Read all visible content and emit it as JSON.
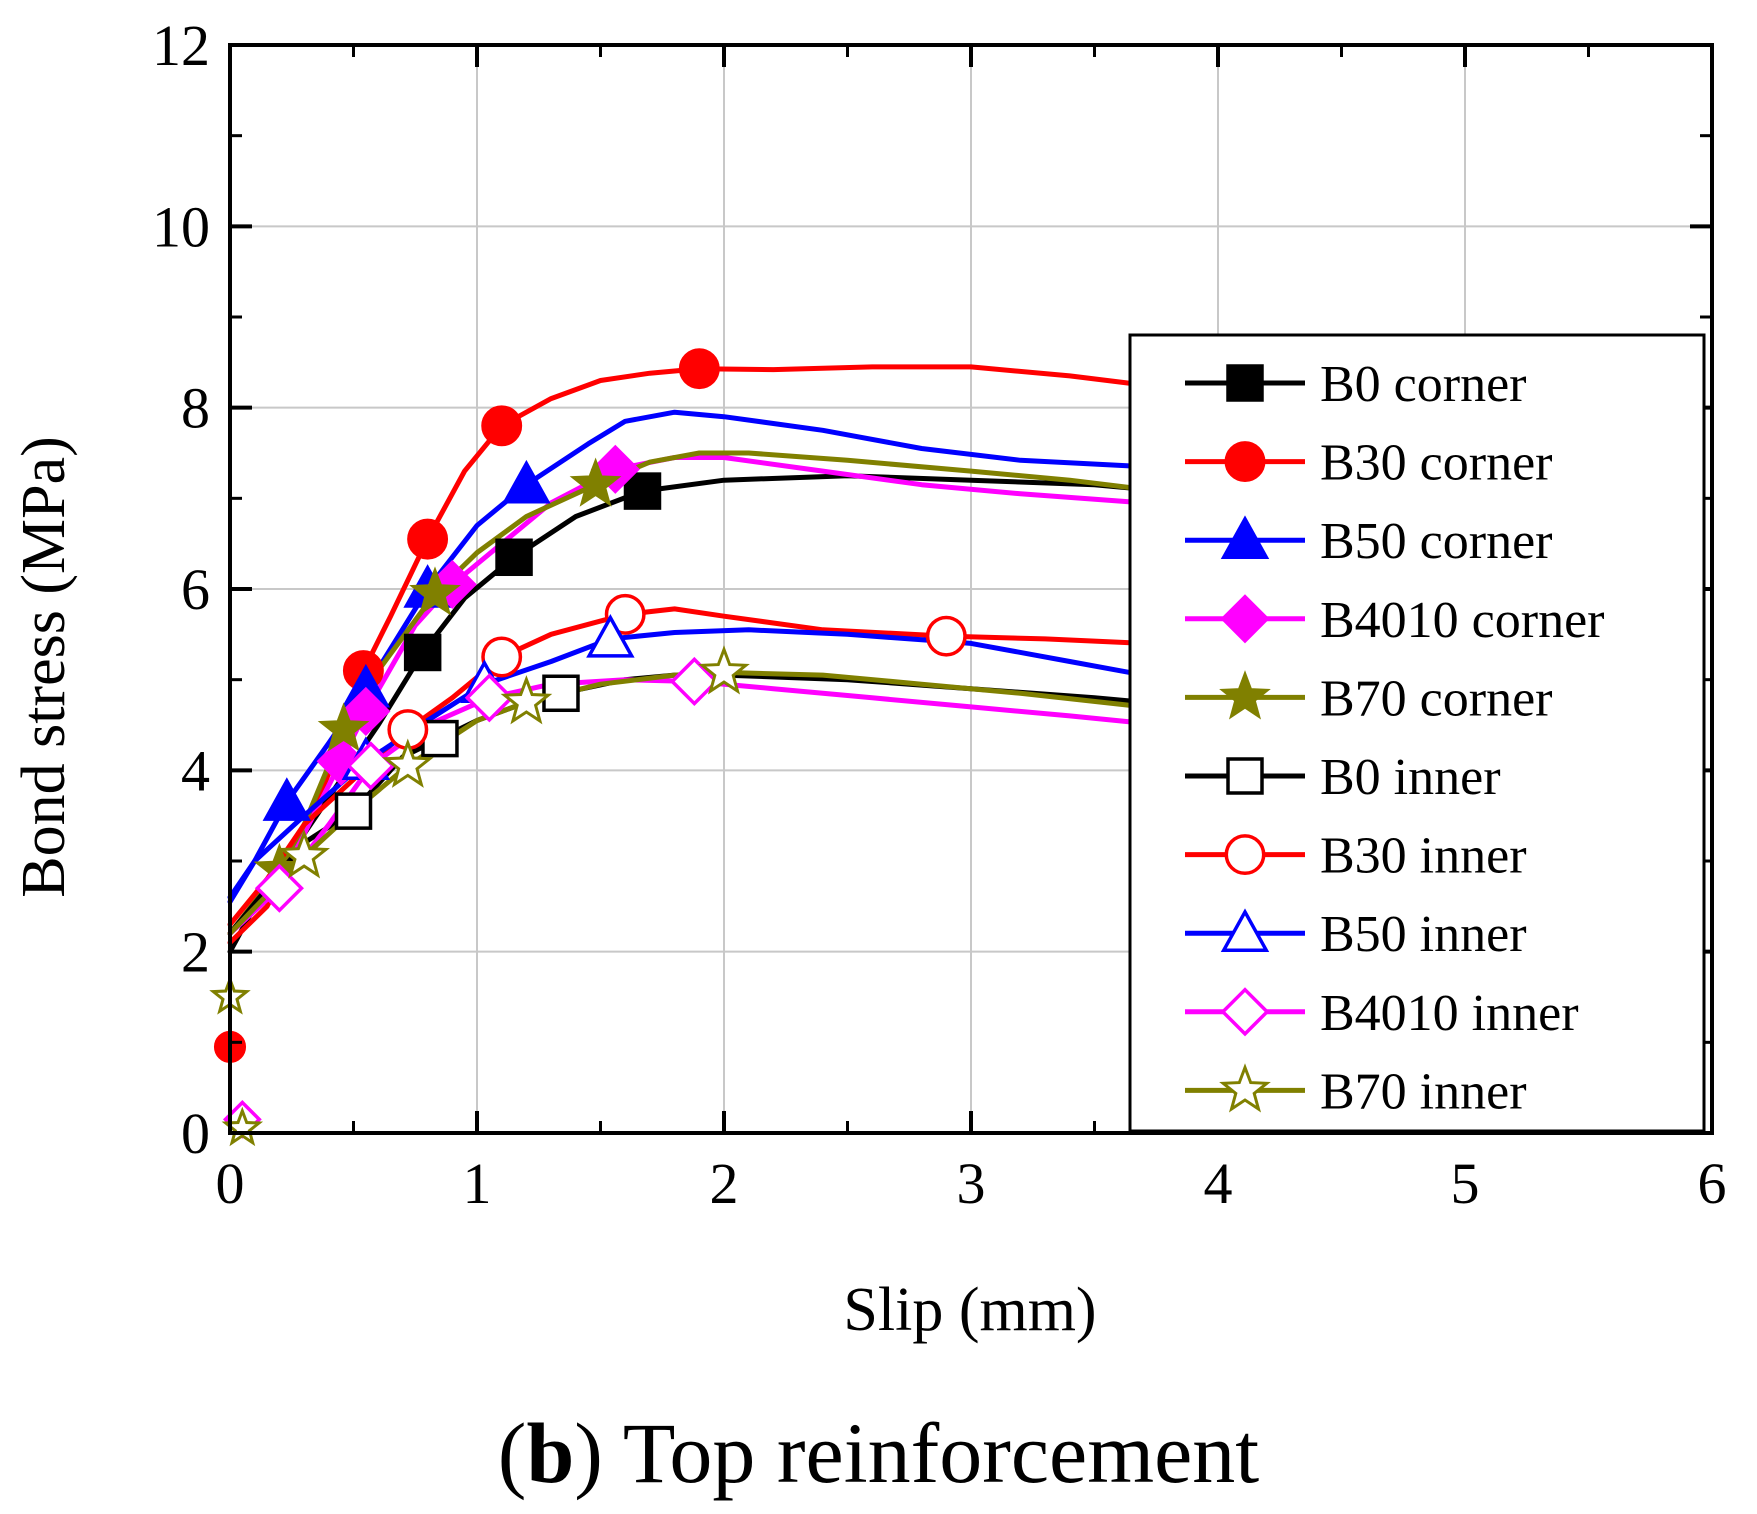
{
  "caption": {
    "open_paren": "(",
    "letter": "b",
    "rest": ") Top reinforcement"
  },
  "chart_data": {
    "type": "line",
    "title": "",
    "xlabel": "Slip (mm)",
    "ylabel": "Bond stress (MPa)",
    "xlim": [
      0,
      6
    ],
    "ylim": [
      0,
      12
    ],
    "xticks": [
      0,
      1,
      2,
      3,
      4,
      5,
      6
    ],
    "yticks": [
      0,
      2,
      4,
      6,
      8,
      10,
      12
    ],
    "xtick_labels": [
      "0",
      "1",
      "2",
      "3",
      "4",
      "5",
      "6"
    ],
    "ytick_labels": [
      "0",
      "2",
      "4",
      "6",
      "8",
      "10",
      "12"
    ],
    "grid": true,
    "legend_position": "right",
    "series": [
      {
        "name": "B0 corner",
        "color": "#000000",
        "marker": "square",
        "filled": true,
        "x": [
          0,
          0.1,
          0.2,
          0.3,
          0.45,
          0.6,
          0.78,
          0.95,
          1.15,
          1.4,
          1.67,
          2.0,
          2.5,
          3.0,
          3.5,
          3.7
        ],
        "y": [
          2.0,
          2.5,
          2.9,
          3.3,
          3.9,
          4.5,
          5.3,
          5.9,
          6.35,
          6.8,
          7.08,
          7.2,
          7.25,
          7.2,
          7.15,
          7.1
        ],
        "markers_x": [
          0.78,
          1.15,
          1.67
        ]
      },
      {
        "name": "B30 corner",
        "color": "#ff0000",
        "marker": "circle",
        "filled": true,
        "x": [
          0,
          0.15,
          0.3,
          0.45,
          0.54,
          0.65,
          0.8,
          0.95,
          1.1,
          1.3,
          1.5,
          1.7,
          1.9,
          2.2,
          2.6,
          3.0,
          3.4,
          3.7
        ],
        "y": [
          2.1,
          2.5,
          3.3,
          4.3,
          5.1,
          5.7,
          6.55,
          7.3,
          7.8,
          8.1,
          8.3,
          8.38,
          8.43,
          8.42,
          8.45,
          8.45,
          8.35,
          8.25
        ],
        "markers_x": [
          0.54,
          0.8,
          1.1,
          1.9
        ]
      },
      {
        "name": "B50 corner",
        "color": "#0000ff",
        "marker": "triangle",
        "filled": true,
        "x": [
          0,
          0.1,
          0.23,
          0.4,
          0.55,
          0.8,
          1.0,
          1.2,
          1.45,
          1.6,
          1.8,
          2.0,
          2.4,
          2.8,
          3.2,
          3.7
        ],
        "y": [
          2.6,
          3.0,
          3.65,
          4.3,
          4.9,
          6.0,
          6.7,
          7.15,
          7.6,
          7.85,
          7.95,
          7.9,
          7.75,
          7.55,
          7.42,
          7.35
        ],
        "markers_x": [
          0.23,
          0.55,
          0.8,
          1.2
        ]
      },
      {
        "name": "B4010 corner",
        "color": "#ff00ff",
        "marker": "diamond",
        "filled": true,
        "x": [
          0,
          0.15,
          0.3,
          0.45,
          0.55,
          0.75,
          0.9,
          1.1,
          1.3,
          1.56,
          1.8,
          2.0,
          2.4,
          2.8,
          3.2,
          3.7
        ],
        "y": [
          2.2,
          2.7,
          3.3,
          4.1,
          4.65,
          5.6,
          6.05,
          6.5,
          6.95,
          7.32,
          7.45,
          7.45,
          7.3,
          7.15,
          7.05,
          6.95
        ],
        "markers_x": [
          0.45,
          0.55,
          0.9,
          1.56
        ]
      },
      {
        "name": "B70 corner",
        "color": "#808000",
        "marker": "star",
        "filled": true,
        "x": [
          0,
          0.2,
          0.3,
          0.46,
          0.6,
          0.83,
          1.0,
          1.2,
          1.48,
          1.7,
          1.9,
          2.1,
          2.5,
          3.0,
          3.4,
          3.7
        ],
        "y": [
          2.2,
          2.9,
          3.4,
          4.45,
          5.1,
          5.95,
          6.4,
          6.8,
          7.15,
          7.4,
          7.5,
          7.5,
          7.42,
          7.3,
          7.2,
          7.1
        ],
        "markers_x": [
          0.2,
          0.46,
          0.83,
          1.48
        ]
      },
      {
        "name": "B0 inner",
        "color": "#000000",
        "marker": "square",
        "filled": false,
        "x": [
          0,
          0.15,
          0.3,
          0.5,
          0.7,
          0.85,
          1.0,
          1.15,
          1.34,
          1.6,
          1.8,
          2.0,
          2.5,
          3.0,
          3.5,
          3.7
        ],
        "y": [
          2.2,
          2.7,
          3.2,
          3.55,
          4.15,
          4.35,
          4.55,
          4.7,
          4.85,
          5.0,
          5.05,
          5.05,
          5.0,
          4.9,
          4.8,
          4.75
        ],
        "markers_x": [
          0.5,
          0.85,
          1.34
        ]
      },
      {
        "name": "B30 inner",
        "color": "#ff0000",
        "marker": "circle",
        "filled": false,
        "x": [
          0,
          0.15,
          0.3,
          0.5,
          0.72,
          0.9,
          1.1,
          1.3,
          1.6,
          1.8,
          2.0,
          2.4,
          2.9,
          3.3,
          3.7
        ],
        "y": [
          2.3,
          2.8,
          3.4,
          3.9,
          4.45,
          4.8,
          5.25,
          5.5,
          5.72,
          5.78,
          5.7,
          5.55,
          5.48,
          5.45,
          5.4
        ],
        "markers_x": [
          0.72,
          1.1,
          1.6,
          2.9
        ]
      },
      {
        "name": "B50 inner",
        "color": "#0000ff",
        "marker": "triangle",
        "filled": false,
        "x": [
          0,
          0.1,
          0.3,
          0.55,
          0.8,
          1.03,
          1.3,
          1.54,
          1.8,
          2.1,
          2.5,
          3.0,
          3.4,
          3.7
        ],
        "y": [
          2.55,
          3.0,
          3.5,
          4.1,
          4.55,
          4.95,
          5.2,
          5.45,
          5.52,
          5.55,
          5.5,
          5.4,
          5.2,
          5.05
        ],
        "markers_x": [
          0.55,
          1.03,
          1.54
        ]
      },
      {
        "name": "B4010 inner",
        "color": "#ff00ff",
        "marker": "diamond",
        "filled": false,
        "x": [
          0,
          0.2,
          0.4,
          0.57,
          0.8,
          1.05,
          1.3,
          1.6,
          1.88,
          2.2,
          2.6,
          3.0,
          3.4,
          3.7
        ],
        "y": [
          2.2,
          2.7,
          3.4,
          4.05,
          4.5,
          4.8,
          4.95,
          5.0,
          4.98,
          4.9,
          4.8,
          4.7,
          4.6,
          4.52
        ],
        "markers_x": [
          0.2,
          0.57,
          1.05,
          1.88
        ]
      },
      {
        "name": "B70 inner",
        "color": "#808000",
        "marker": "star",
        "filled": false,
        "x": [
          0,
          0.3,
          0.5,
          0.72,
          1.0,
          1.2,
          1.5,
          1.8,
          2.0,
          2.4,
          2.8,
          3.2,
          3.7
        ],
        "y": [
          2.2,
          3.05,
          3.55,
          4.05,
          4.55,
          4.75,
          4.95,
          5.05,
          5.08,
          5.05,
          4.95,
          4.85,
          4.7
        ],
        "markers_x": [
          0.3,
          0.72,
          1.2,
          2.0
        ]
      }
    ],
    "near_zero_points": [
      {
        "series": "B30 corner",
        "x": 0.0,
        "y": 0.95
      },
      {
        "series": "B70 inner",
        "x": 0.0,
        "y": 1.5
      },
      {
        "series": "B4010 inner",
        "x": 0.05,
        "y": 0.15
      },
      {
        "series": "B70 inner",
        "x": 0.05,
        "y": 0.05
      }
    ]
  }
}
